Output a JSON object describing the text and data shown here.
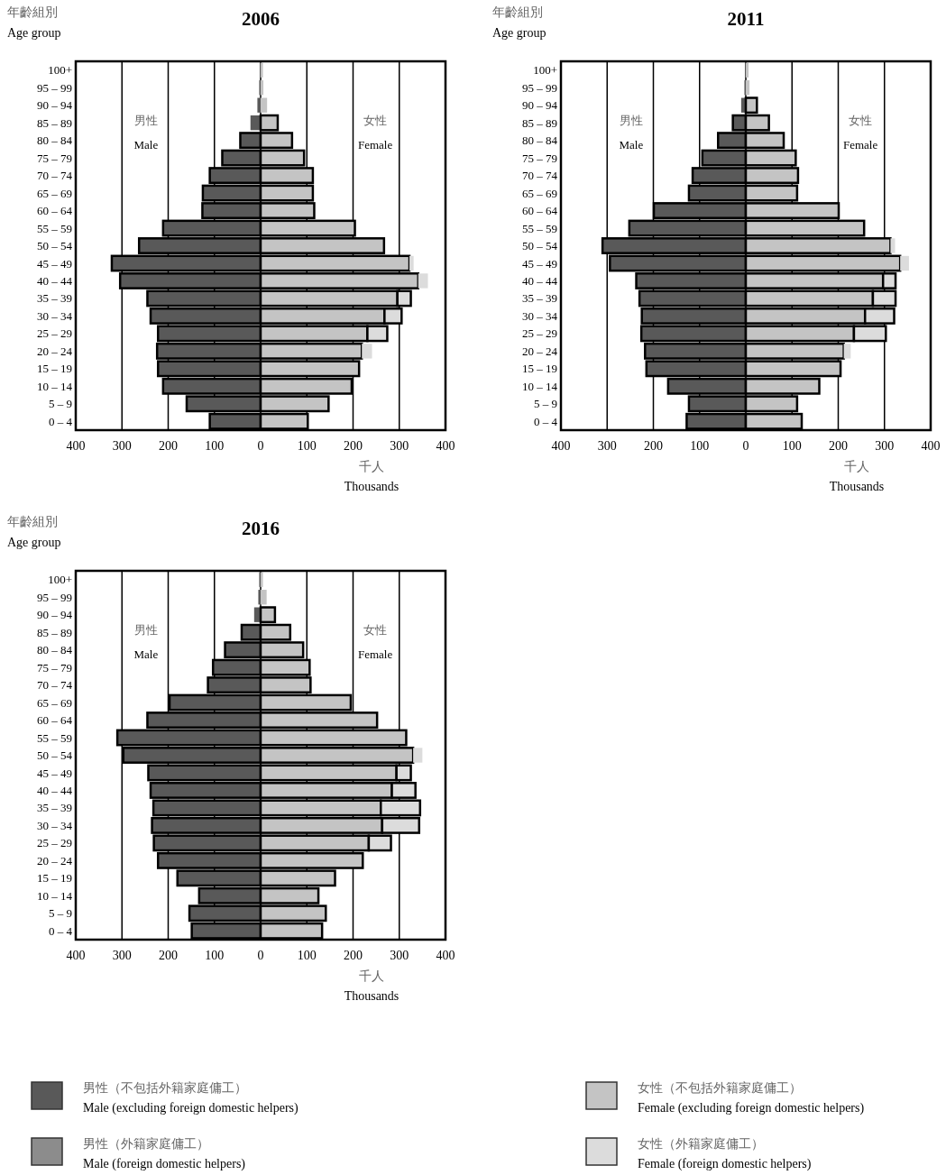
{
  "chart_data": [
    {
      "type": "bar",
      "orientation": "horizontal",
      "stacked": true,
      "title": "2006",
      "ylabel": "年齡組別\nAge group",
      "xlabel": "千人\nThousands",
      "annotations": [
        "男性\nMale",
        "女性\nFemale"
      ],
      "categories": [
        "100+",
        "95 – 99",
        "90 – 94",
        "85 – 89",
        "80 – 84",
        "75 – 79",
        "70 – 74",
        "65 – 69",
        "60 – 64",
        "55 – 59",
        "50 – 54",
        "45 – 49",
        "40 – 44",
        "35 – 39",
        "30 – 34",
        "25 – 29",
        "20 – 24",
        "15 – 19",
        "10 – 14",
        "5 – 9",
        "0 – 4"
      ],
      "xlim": [
        -400,
        400
      ],
      "xticks": [
        {
          "value": -400,
          "label": "400"
        },
        {
          "value": -300,
          "label": "300"
        },
        {
          "value": -200,
          "label": "200"
        },
        {
          "value": -100,
          "label": "100"
        },
        0,
        100,
        200,
        300,
        400
      ],
      "grid": "x",
      "legend": "bottom",
      "series": [
        {
          "name": "男性（不包括外籍家庭傭工）\nMale (excluding foreign domestic helpers)",
          "color": "#595959",
          "values": [
            -2,
            -3,
            -7,
            -22,
            -44,
            -83,
            -110,
            -125,
            -126,
            -211,
            -263,
            -322,
            -304,
            -245,
            -238,
            -222,
            -224,
            -222,
            -211,
            -160,
            -110
          ]
        },
        {
          "name": "男性（外籍家庭傭工）\nMale (foreign domestic helpers)",
          "color": "#8c8c8c",
          "values": [
            null,
            null,
            null,
            null,
            null,
            null,
            null,
            null,
            null,
            null,
            null,
            null,
            null,
            null,
            null,
            null,
            null,
            null,
            null,
            null,
            null
          ]
        },
        {
          "name": "女性（不包括外籍家庭傭工）\nFemale (excluding foreign domestic helpers)",
          "color": "#c4c4c4",
          "values": [
            5,
            6,
            14,
            37,
            68,
            94,
            113,
            113,
            116,
            204,
            267,
            322,
            341,
            296,
            268,
            231,
            219,
            213,
            197,
            147,
            102
          ]
        },
        {
          "name": "女性（外籍家庭傭工）\nFemale (foreign domestic helpers)",
          "color": "#dcdcdc",
          "values": [
            null,
            null,
            null,
            null,
            null,
            null,
            null,
            null,
            null,
            null,
            null,
            9,
            21,
            29,
            37,
            43,
            22,
            null,
            null,
            null,
            null
          ]
        }
      ]
    },
    {
      "type": "bar",
      "orientation": "horizontal",
      "stacked": true,
      "title": "2011",
      "ylabel": "年齡組別\nAge group",
      "xlabel": "千人\nThousands",
      "annotations": [
        "男性\nMale",
        "女性\nFemale"
      ],
      "categories": [
        "100+",
        "95 – 99",
        "90 – 94",
        "85 – 89",
        "80 – 84",
        "75 – 79",
        "70 – 74",
        "65 – 69",
        "60 – 64",
        "55 – 59",
        "50 – 54",
        "45 – 49",
        "40 – 44",
        "35 – 39",
        "30 – 34",
        "25 – 29",
        "20 – 24",
        "15 – 19",
        "10 – 14",
        "5 – 9",
        "0 – 4"
      ],
      "xlim": [
        -400,
        400
      ],
      "xticks": [
        {
          "value": -400,
          "label": "400"
        },
        {
          "value": -300,
          "label": "300"
        },
        {
          "value": -200,
          "label": "200"
        },
        {
          "value": -100,
          "label": "100"
        },
        0,
        100,
        200,
        300,
        400
      ],
      "grid": "x",
      "series": [
        {
          "color": "#595959",
          "values": [
            -2,
            -3,
            -10,
            -28,
            -60,
            -94,
            -115,
            -123,
            -199,
            -252,
            -310,
            -294,
            -237,
            -230,
            -225,
            -226,
            -218,
            -215,
            -168,
            -123,
            -128
          ]
        },
        {
          "color": "#8c8c8c",
          "values": [
            null,
            null,
            null,
            null,
            null,
            null,
            null,
            null,
            null,
            null,
            null,
            null,
            null,
            null,
            null,
            null,
            null,
            null,
            null,
            null,
            null
          ]
        },
        {
          "color": "#c4c4c4",
          "values": [
            6,
            8,
            24,
            50,
            82,
            108,
            113,
            111,
            201,
            256,
            313,
            334,
            297,
            275,
            258,
            234,
            212,
            205,
            159,
            111,
            121
          ]
        },
        {
          "color": "#dcdcdc",
          "values": [
            null,
            null,
            null,
            null,
            null,
            null,
            null,
            null,
            null,
            null,
            10,
            19,
            27,
            49,
            63,
            69,
            15,
            null,
            null,
            null,
            null
          ]
        }
      ]
    },
    {
      "type": "bar",
      "orientation": "horizontal",
      "stacked": true,
      "title": "2016",
      "ylabel": "年齡組別\nAge group",
      "xlabel": "千人\nThousands",
      "annotations": [
        "男性\nMale",
        "女性\nFemale"
      ],
      "categories": [
        "100+",
        "95 – 99",
        "90 – 94",
        "85 – 89",
        "80 – 84",
        "75 – 79",
        "70 – 74",
        "65 – 69",
        "60 – 64",
        "55 – 59",
        "50 – 54",
        "45 – 49",
        "40 – 44",
        "35 – 39",
        "30 – 34",
        "25 – 29",
        "20 – 24",
        "15 – 19",
        "10 – 14",
        "5 – 9",
        "0 – 4"
      ],
      "xlim": [
        -400,
        400
      ],
      "xticks": [
        {
          "value": -400,
          "label": "400"
        },
        {
          "value": -300,
          "label": "300"
        },
        {
          "value": -200,
          "label": "200"
        },
        {
          "value": -100,
          "label": "100"
        },
        0,
        100,
        200,
        300,
        400
      ],
      "grid": "x",
      "series": [
        {
          "color": "#595959",
          "values": [
            -3,
            -5,
            -14,
            -41,
            -77,
            -103,
            -114,
            -197,
            -245,
            -310,
            -297,
            -243,
            -238,
            -232,
            -235,
            -231,
            -222,
            -180,
            -133,
            -154,
            -149
          ]
        },
        {
          "color": "#8c8c8c",
          "values": [
            null,
            null,
            null,
            null,
            null,
            null,
            null,
            null,
            null,
            null,
            null,
            null,
            null,
            null,
            null,
            null,
            null,
            null,
            null,
            null,
            null
          ]
        },
        {
          "color": "#c4c4c4",
          "values": [
            5,
            13,
            31,
            64,
            92,
            106,
            108,
            195,
            252,
            315,
            330,
            294,
            284,
            260,
            263,
            234,
            221,
            161,
            125,
            141,
            133
          ]
        },
        {
          "color": "#dcdcdc",
          "values": [
            null,
            null,
            null,
            null,
            null,
            null,
            null,
            null,
            null,
            null,
            20,
            31,
            51,
            85,
            80,
            48,
            null,
            null,
            null,
            null,
            null
          ]
        }
      ]
    }
  ]
}
